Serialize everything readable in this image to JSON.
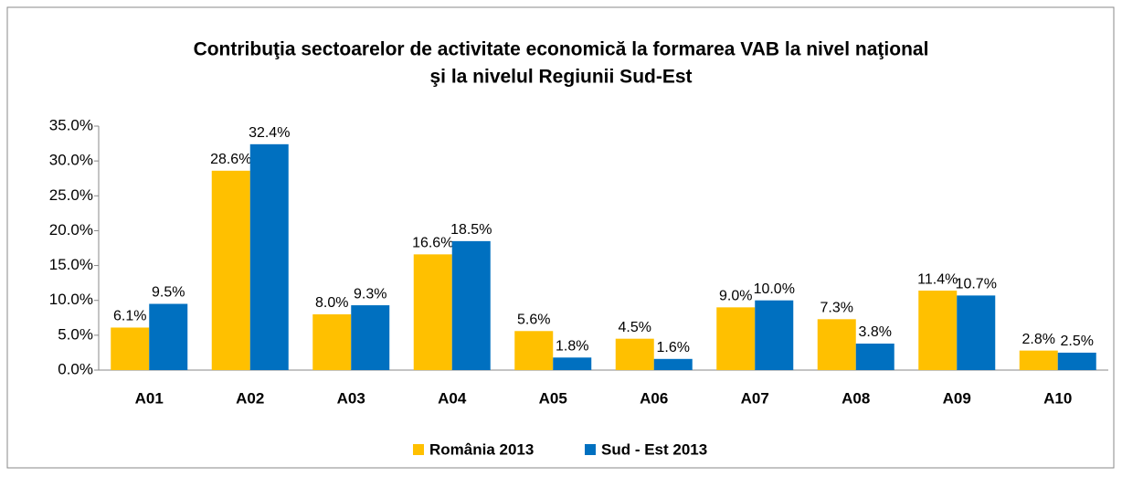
{
  "chart_data": {
    "type": "bar",
    "title": [
      "Contribuţia sectoarelor de activitate economică la formarea VAB la nivel naţional",
      "şi la nivelul Regiunii Sud-Est"
    ],
    "categories": [
      "A01",
      "A02",
      "A03",
      "A04",
      "A05",
      "A06",
      "A07",
      "A08",
      "A09",
      "A10"
    ],
    "series": [
      {
        "name": "România 2013",
        "color": "#ffc000",
        "values": [
          6.1,
          28.6,
          8.0,
          16.6,
          5.6,
          4.5,
          9.0,
          7.3,
          11.4,
          2.8
        ],
        "value_labels": [
          "6.1%",
          "28.6%",
          "8.0%",
          "16.6%",
          "5.6%",
          "4.5%",
          "9.0%",
          "7.3%",
          "11.4%",
          "2.8%"
        ]
      },
      {
        "name": "Sud - Est 2013",
        "color": "#0070c0",
        "values": [
          9.5,
          32.4,
          9.3,
          18.5,
          1.8,
          1.6,
          10.0,
          3.8,
          10.7,
          2.5
        ],
        "value_labels": [
          "9.5%",
          "32.4%",
          "9.3%",
          "18.5%",
          "1.8%",
          "1.6%",
          "10.0%",
          "3.8%",
          "10.7%",
          "2.5%"
        ]
      }
    ],
    "ylim": [
      0,
      35
    ],
    "yticks": [
      {
        "value": 0,
        "label": "0.0%"
      },
      {
        "value": 5,
        "label": "5.0%"
      },
      {
        "value": 10,
        "label": "10.0%"
      },
      {
        "value": 15,
        "label": "15.0%"
      },
      {
        "value": 20,
        "label": "20.0%"
      },
      {
        "value": 25,
        "label": "25.0%"
      },
      {
        "value": 30,
        "label": "30.0%"
      },
      {
        "value": 35,
        "label": "35.0%"
      }
    ],
    "legend": "bottom"
  }
}
